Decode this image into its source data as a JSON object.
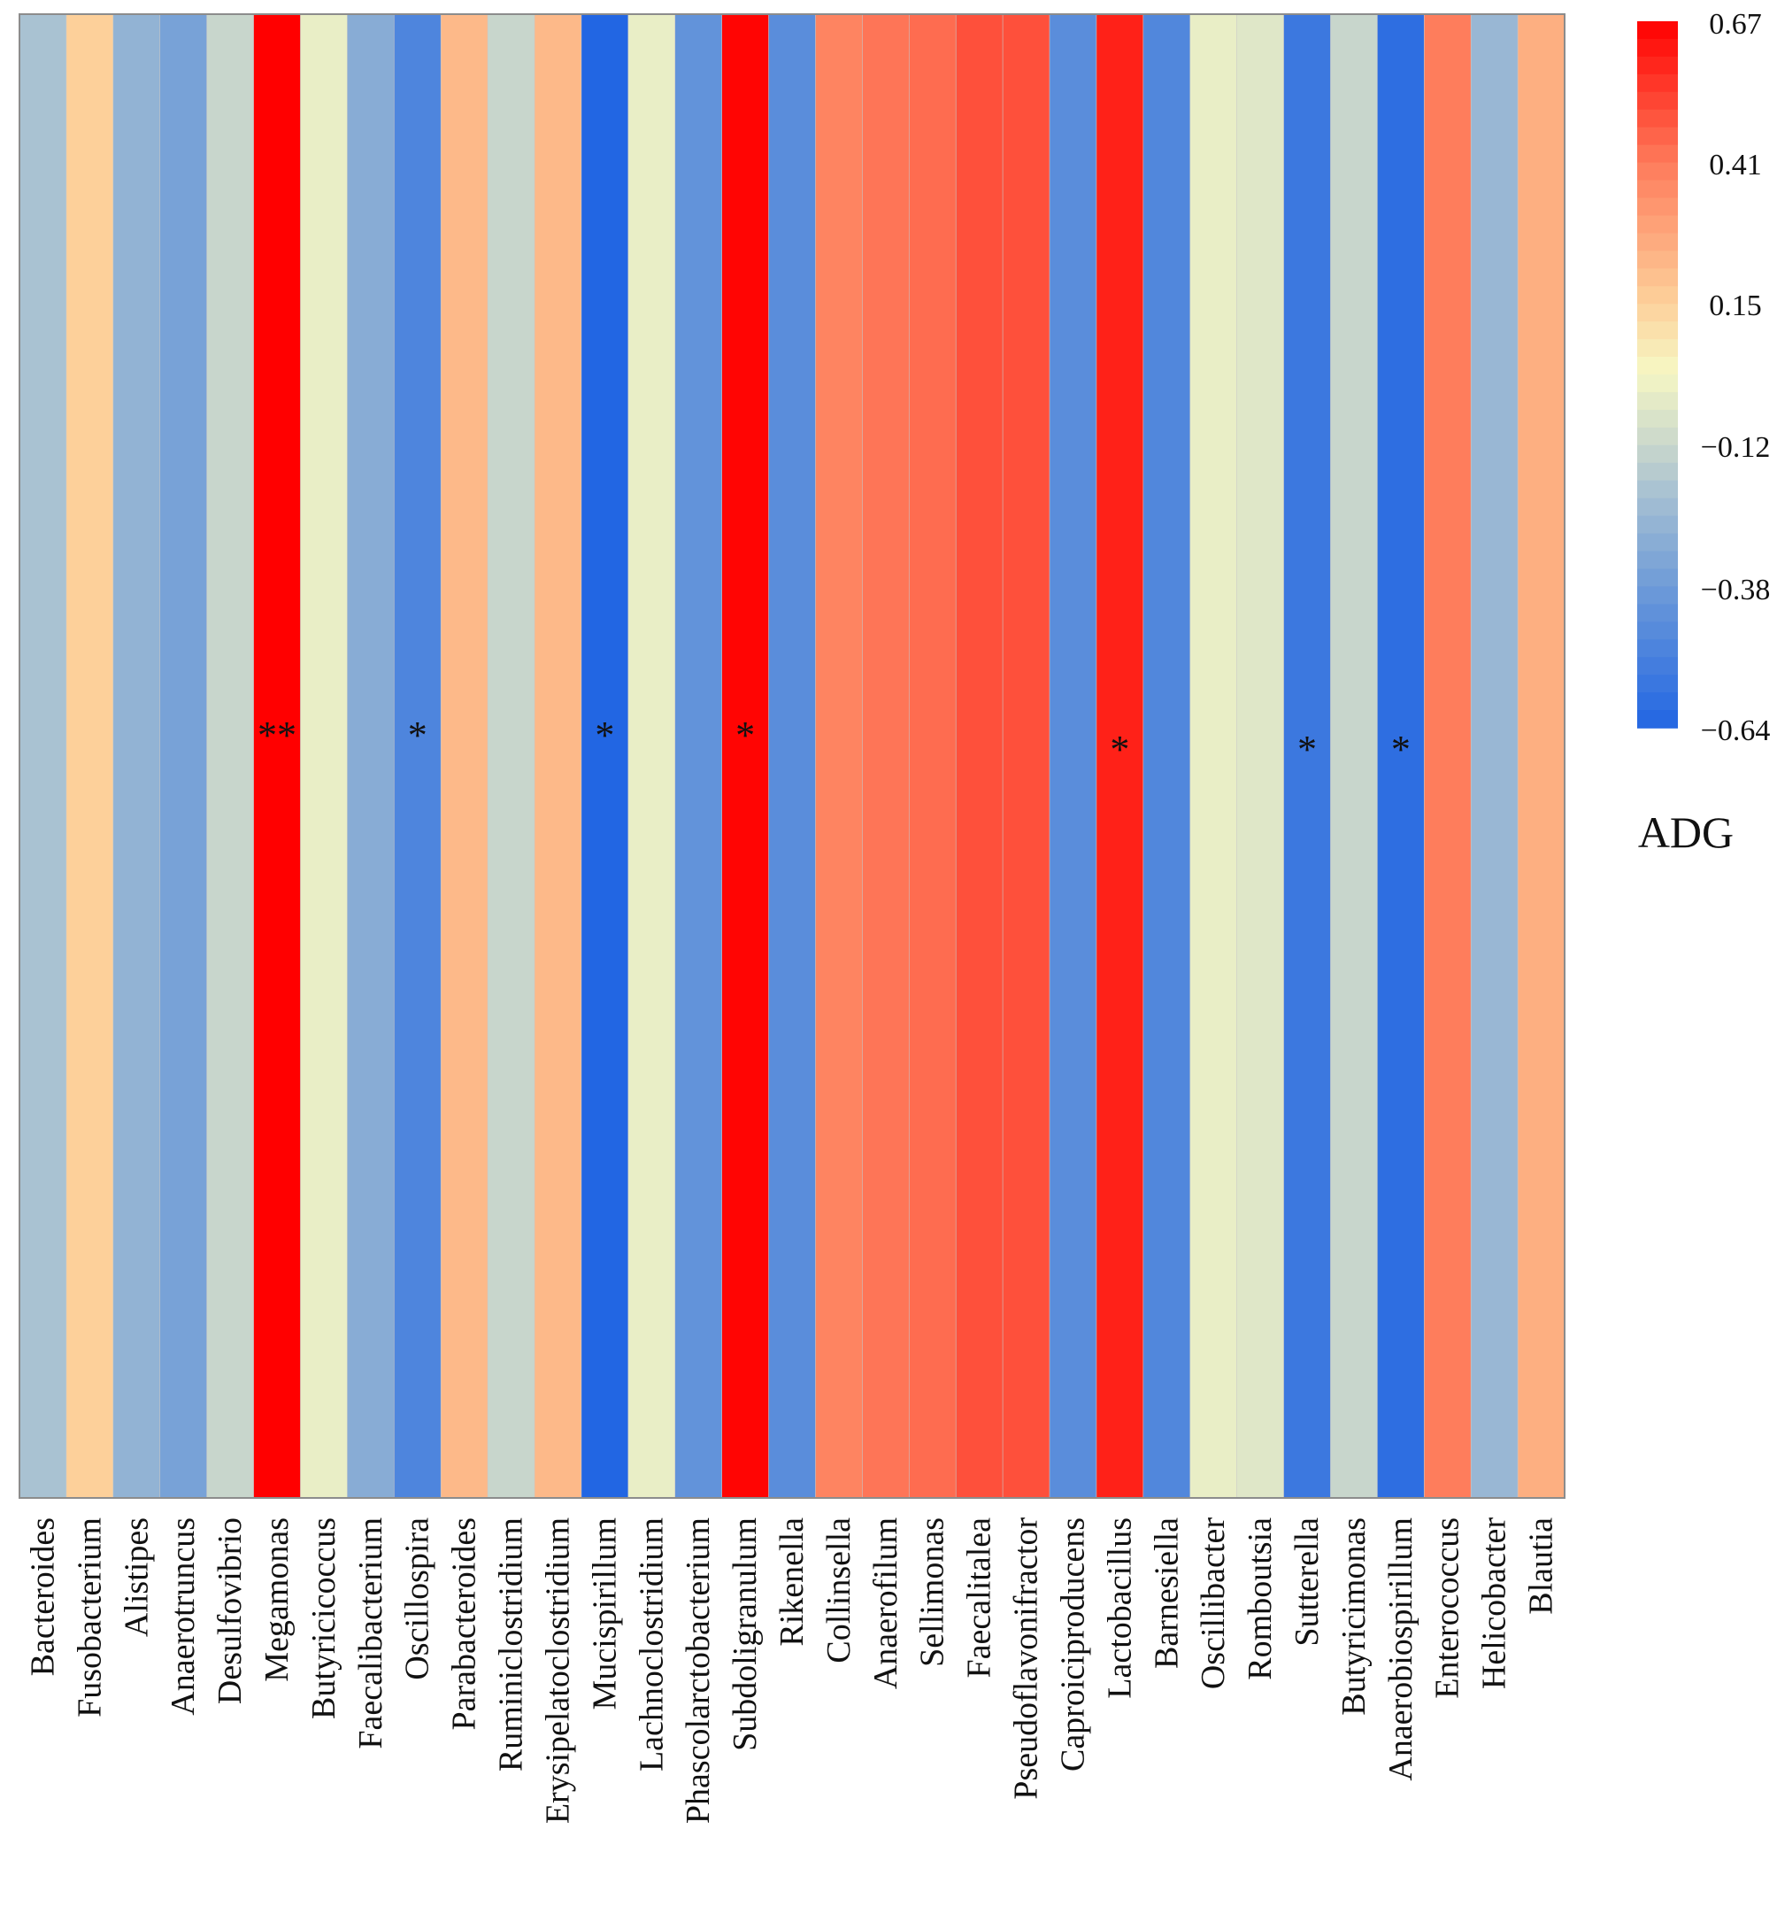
{
  "chart_data": {
    "type": "heatmap",
    "title": "",
    "row_label": "ADG",
    "columns": [
      {
        "name": "Bacteroides",
        "value": -0.2,
        "sig": ""
      },
      {
        "name": "Fusobacterium",
        "value": 0.15,
        "sig": ""
      },
      {
        "name": "Alistipes",
        "value": -0.27,
        "sig": ""
      },
      {
        "name": "Anaerotruncus",
        "value": -0.35,
        "sig": ""
      },
      {
        "name": "Desulfovibrio",
        "value": -0.12,
        "sig": ""
      },
      {
        "name": "Megamonas",
        "value": 0.67,
        "sig": "**"
      },
      {
        "name": "Butyricicoccus",
        "value": -0.02,
        "sig": ""
      },
      {
        "name": "Faecalibacterium",
        "value": -0.3,
        "sig": ""
      },
      {
        "name": "Oscillospira",
        "value": -0.49,
        "sig": "*"
      },
      {
        "name": "Parabacteroides",
        "value": 0.22,
        "sig": ""
      },
      {
        "name": "Ruminiclostridium",
        "value": -0.12,
        "sig": ""
      },
      {
        "name": "Erysipelatoclostridium",
        "value": 0.22,
        "sig": ""
      },
      {
        "name": "Mucispirillum",
        "value": -0.64,
        "sig": "*"
      },
      {
        "name": "Lachnoclostridium",
        "value": -0.02,
        "sig": ""
      },
      {
        "name": "Phascolarctobacterium",
        "value": -0.42,
        "sig": ""
      },
      {
        "name": "Subdoligranulum",
        "value": 0.66,
        "sig": "*"
      },
      {
        "name": "Rikenella",
        "value": -0.45,
        "sig": ""
      },
      {
        "name": "Collinsella",
        "value": 0.38,
        "sig": ""
      },
      {
        "name": "Anaerofilum",
        "value": 0.42,
        "sig": ""
      },
      {
        "name": "Sellimonas",
        "value": 0.44,
        "sig": ""
      },
      {
        "name": "Faecalitalea",
        "value": 0.5,
        "sig": ""
      },
      {
        "name": "Pseudoflavonifractor",
        "value": 0.5,
        "sig": ""
      },
      {
        "name": "Caproiciproducens",
        "value": -0.45,
        "sig": ""
      },
      {
        "name": "Lactobacillus",
        "value": 0.6,
        "sig": "*"
      },
      {
        "name": "Barnesiella",
        "value": -0.48,
        "sig": ""
      },
      {
        "name": "Oscillibacter",
        "value": -0.02,
        "sig": ""
      },
      {
        "name": "Romboutsia",
        "value": -0.05,
        "sig": ""
      },
      {
        "name": "Sutterella",
        "value": -0.55,
        "sig": "*"
      },
      {
        "name": "Butyricimonas",
        "value": -0.12,
        "sig": ""
      },
      {
        "name": "Anaerobiospirillum",
        "value": -0.6,
        "sig": "*"
      },
      {
        "name": "Enterococcus",
        "value": 0.4,
        "sig": ""
      },
      {
        "name": "Helicobacter",
        "value": -0.25,
        "sig": ""
      },
      {
        "name": "Blautia",
        "value": 0.25,
        "sig": ""
      }
    ],
    "color_scale": {
      "min": -0.64,
      "max": 0.67,
      "ticks": [
        "0.67",
        "0.41",
        "0.15",
        "−0.12",
        "−0.38",
        "−0.64"
      ],
      "stops": [
        {
          "value": -0.64,
          "color": "#2266e3"
        },
        {
          "value": -0.38,
          "color": "#6e9bd8"
        },
        {
          "value": -0.2,
          "color": "#a9c2d2"
        },
        {
          "value": -0.12,
          "color": "#c8d6cc"
        },
        {
          "value": 0.02,
          "color": "#f6f7c4"
        },
        {
          "value": 0.15,
          "color": "#fdd09a"
        },
        {
          "value": 0.41,
          "color": "#fe7a5a"
        },
        {
          "value": 0.67,
          "color": "#ff0000"
        }
      ]
    },
    "legend_position": "top-right"
  }
}
